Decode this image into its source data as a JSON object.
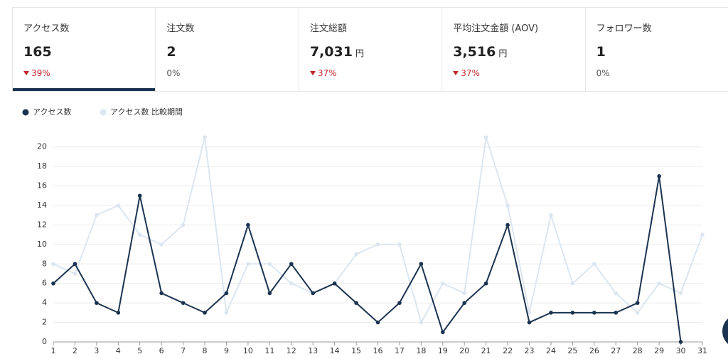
{
  "cards": [
    {
      "label": "アクセス数",
      "value": "165",
      "change": "39%"
    },
    {
      "label": "注文数",
      "value": "2",
      "change": "0%"
    },
    {
      "label": "注文総額",
      "value": "7,031",
      "unit": "円",
      "change": "37%"
    },
    {
      "label": "平均注文金額 (AOV)",
      "value": "3,516",
      "unit": "円",
      "change": "37%"
    },
    {
      "label": "フォロワー数",
      "value": "1",
      "change": "0%"
    }
  ],
  "chart_data": {
    "type": "line",
    "x": [
      1,
      2,
      3,
      4,
      5,
      6,
      7,
      8,
      9,
      10,
      11,
      12,
      13,
      14,
      15,
      16,
      17,
      18,
      19,
      20,
      21,
      22,
      23,
      24,
      25,
      26,
      27,
      28,
      29,
      30,
      31
    ],
    "series": [
      {
        "name": "アクセス数",
        "color": "#1b3350",
        "values": [
          6,
          8,
          4,
          3,
          15,
          5,
          4,
          3,
          5,
          12,
          5,
          8,
          5,
          6,
          4,
          2,
          4,
          8,
          1,
          4,
          6,
          12,
          2,
          3,
          3,
          3,
          3,
          4,
          17,
          0,
          null
        ]
      },
      {
        "name": "アクセス数 比較期間",
        "color": "#dce6f0",
        "values": [
          8,
          7,
          13,
          14,
          11,
          10,
          12,
          21,
          3,
          8,
          8,
          6,
          5,
          6,
          9,
          10,
          10,
          2,
          6,
          5,
          21,
          14,
          3,
          13,
          6,
          8,
          5,
          3,
          6,
          5,
          11
        ]
      }
    ],
    "xlim": [
      1,
      31
    ],
    "xticks": [
      1,
      2,
      3,
      4,
      5,
      6,
      7,
      8,
      9,
      10,
      11,
      12,
      13,
      14,
      15,
      16,
      17,
      18,
      19,
      20,
      21,
      22,
      23,
      24,
      25,
      26,
      27,
      28,
      29,
      30,
      31
    ],
    "ylim": [
      0,
      21
    ],
    "yticks": [
      0,
      2,
      4,
      6,
      8,
      10,
      12,
      14,
      16,
      18,
      20
    ],
    "grid": true
  }
}
